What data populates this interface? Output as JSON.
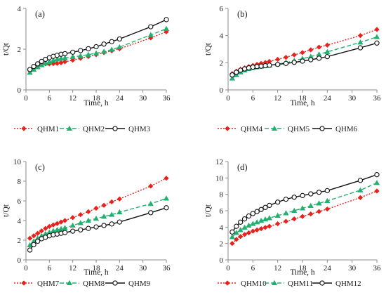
{
  "chart_data": [
    {
      "type": "line",
      "panel_label": "(a)",
      "xlabel": "Time, h",
      "ylabel": "t/Qt",
      "xlim": [
        0,
        36
      ],
      "ylim": [
        0,
        4
      ],
      "xticks": [
        0,
        6,
        12,
        18,
        24,
        30,
        36
      ],
      "yticks": [
        0,
        2,
        4
      ],
      "grid": false,
      "legend_position": "bottom",
      "x": [
        1,
        2,
        3,
        4,
        5,
        6,
        7,
        8,
        9,
        10,
        12,
        14,
        16,
        18,
        20,
        22,
        24,
        32,
        36
      ],
      "series": [
        {
          "name": "QHM1",
          "color": "#e8221b",
          "line_style": "dotted",
          "marker": "diamond",
          "values": [
            0.95,
            1.1,
            1.2,
            1.26,
            1.28,
            1.28,
            1.29,
            1.3,
            1.33,
            1.38,
            1.46,
            1.55,
            1.64,
            1.73,
            1.83,
            1.92,
            2.02,
            2.55,
            2.85
          ]
        },
        {
          "name": "QHM2",
          "color": "#22b070",
          "line_style": "dashed",
          "marker": "triangle",
          "values": [
            0.85,
            1.0,
            1.12,
            1.22,
            1.3,
            1.38,
            1.45,
            1.5,
            1.54,
            1.57,
            1.62,
            1.67,
            1.73,
            1.8,
            1.88,
            1.98,
            2.1,
            2.7,
            3.0
          ]
        },
        {
          "name": "QHM3",
          "color": "#111111",
          "line_style": "solid",
          "marker": "circle",
          "values": [
            1.0,
            1.15,
            1.28,
            1.4,
            1.5,
            1.58,
            1.65,
            1.7,
            1.75,
            1.78,
            1.85,
            1.93,
            2.02,
            2.12,
            2.25,
            2.37,
            2.5,
            3.1,
            3.45
          ]
        }
      ]
    },
    {
      "type": "line",
      "panel_label": "(b)",
      "xlabel": "Time, h",
      "ylabel": "t/Qt",
      "xlim": [
        0,
        36
      ],
      "ylim": [
        0,
        6
      ],
      "xticks": [
        0,
        6,
        12,
        18,
        24,
        30,
        36
      ],
      "yticks": [
        0,
        2,
        4,
        6
      ],
      "grid": false,
      "legend_position": "bottom",
      "x": [
        1,
        2,
        3,
        4,
        5,
        6,
        7,
        8,
        9,
        10,
        12,
        14,
        16,
        18,
        20,
        22,
        24,
        32,
        36
      ],
      "series": [
        {
          "name": "QHM4",
          "color": "#e8221b",
          "line_style": "dotted",
          "marker": "diamond",
          "values": [
            1.2,
            1.38,
            1.52,
            1.62,
            1.72,
            1.8,
            1.88,
            1.95,
            2.02,
            2.1,
            2.25,
            2.4,
            2.58,
            2.75,
            2.95,
            3.15,
            3.3,
            4.0,
            4.45
          ]
        },
        {
          "name": "QHM5",
          "color": "#22b070",
          "line_style": "dashed",
          "marker": "triangle",
          "values": [
            0.85,
            1.1,
            1.3,
            1.45,
            1.55,
            1.62,
            1.68,
            1.72,
            1.76,
            1.8,
            1.9,
            2.0,
            2.15,
            2.3,
            2.45,
            2.62,
            2.8,
            3.5,
            3.9
          ]
        },
        {
          "name": "QHM6",
          "color": "#111111",
          "line_style": "solid",
          "marker": "circle",
          "values": [
            1.1,
            1.3,
            1.45,
            1.55,
            1.62,
            1.68,
            1.72,
            1.75,
            1.78,
            1.82,
            1.88,
            1.95,
            2.03,
            2.12,
            2.22,
            2.33,
            2.45,
            3.1,
            3.45
          ]
        }
      ]
    },
    {
      "type": "line",
      "panel_label": "(c)",
      "xlabel": "Time, h",
      "ylabel": "t/Qt",
      "xlim": [
        0,
        36
      ],
      "ylim": [
        0,
        10
      ],
      "xticks": [
        0,
        6,
        12,
        18,
        24,
        30,
        36
      ],
      "yticks": [
        0,
        2,
        4,
        6,
        8,
        10
      ],
      "grid": false,
      "legend_position": "bottom",
      "x": [
        1,
        2,
        3,
        4,
        5,
        6,
        7,
        8,
        9,
        10,
        12,
        14,
        16,
        18,
        20,
        22,
        24,
        32,
        36
      ],
      "series": [
        {
          "name": "QHM7",
          "color": "#e8221b",
          "line_style": "dotted",
          "marker": "diamond",
          "values": [
            2.2,
            2.45,
            2.7,
            2.95,
            3.2,
            3.4,
            3.55,
            3.7,
            3.85,
            4.0,
            4.3,
            4.6,
            4.9,
            5.25,
            5.55,
            5.9,
            6.2,
            7.5,
            8.3
          ]
        },
        {
          "name": "QHM8",
          "color": "#22b070",
          "line_style": "dashed",
          "marker": "triangle",
          "values": [
            1.5,
            1.9,
            2.2,
            2.45,
            2.65,
            2.8,
            2.95,
            3.05,
            3.15,
            3.25,
            3.5,
            3.75,
            4.0,
            4.2,
            4.4,
            4.6,
            4.85,
            5.7,
            6.25
          ]
        },
        {
          "name": "QHM9",
          "color": "#111111",
          "line_style": "solid",
          "marker": "circle",
          "values": [
            1.0,
            1.55,
            1.9,
            2.15,
            2.3,
            2.45,
            2.55,
            2.62,
            2.7,
            2.78,
            2.92,
            3.05,
            3.2,
            3.35,
            3.5,
            3.65,
            3.85,
            4.8,
            5.3
          ]
        }
      ]
    },
    {
      "type": "line",
      "panel_label": "(d)",
      "xlabel": "Time, h",
      "ylabel": "t/Qt",
      "xlim": [
        0,
        36
      ],
      "ylim": [
        0,
        12
      ],
      "xticks": [
        0,
        6,
        12,
        18,
        24,
        30,
        36
      ],
      "yticks": [
        0,
        2,
        4,
        6,
        8,
        10,
        12
      ],
      "grid": false,
      "legend_position": "bottom",
      "x": [
        1,
        2,
        3,
        4,
        5,
        6,
        7,
        8,
        9,
        10,
        12,
        14,
        16,
        18,
        20,
        22,
        24,
        32,
        36
      ],
      "series": [
        {
          "name": "QHM10",
          "color": "#e8221b",
          "line_style": "dotted",
          "marker": "diamond",
          "values": [
            2.0,
            2.5,
            2.85,
            3.1,
            3.3,
            3.5,
            3.65,
            3.8,
            3.95,
            4.1,
            4.4,
            4.7,
            5.0,
            5.3,
            5.6,
            5.9,
            6.2,
            7.6,
            8.4
          ]
        },
        {
          "name": "QHM11",
          "color": "#22b070",
          "line_style": "dashed",
          "marker": "triangle",
          "values": [
            2.8,
            3.3,
            3.65,
            3.95,
            4.2,
            4.4,
            4.6,
            4.78,
            4.95,
            5.1,
            5.4,
            5.7,
            6.0,
            6.3,
            6.6,
            6.9,
            7.2,
            8.5,
            9.4
          ]
        },
        {
          "name": "QHM12",
          "color": "#111111",
          "line_style": "solid",
          "marker": "circle",
          "values": [
            3.4,
            4.1,
            4.6,
            5.0,
            5.35,
            5.65,
            5.9,
            6.15,
            6.4,
            6.65,
            7.05,
            7.4,
            7.65,
            7.85,
            8.05,
            8.25,
            8.45,
            9.7,
            10.4
          ]
        }
      ]
    }
  ]
}
